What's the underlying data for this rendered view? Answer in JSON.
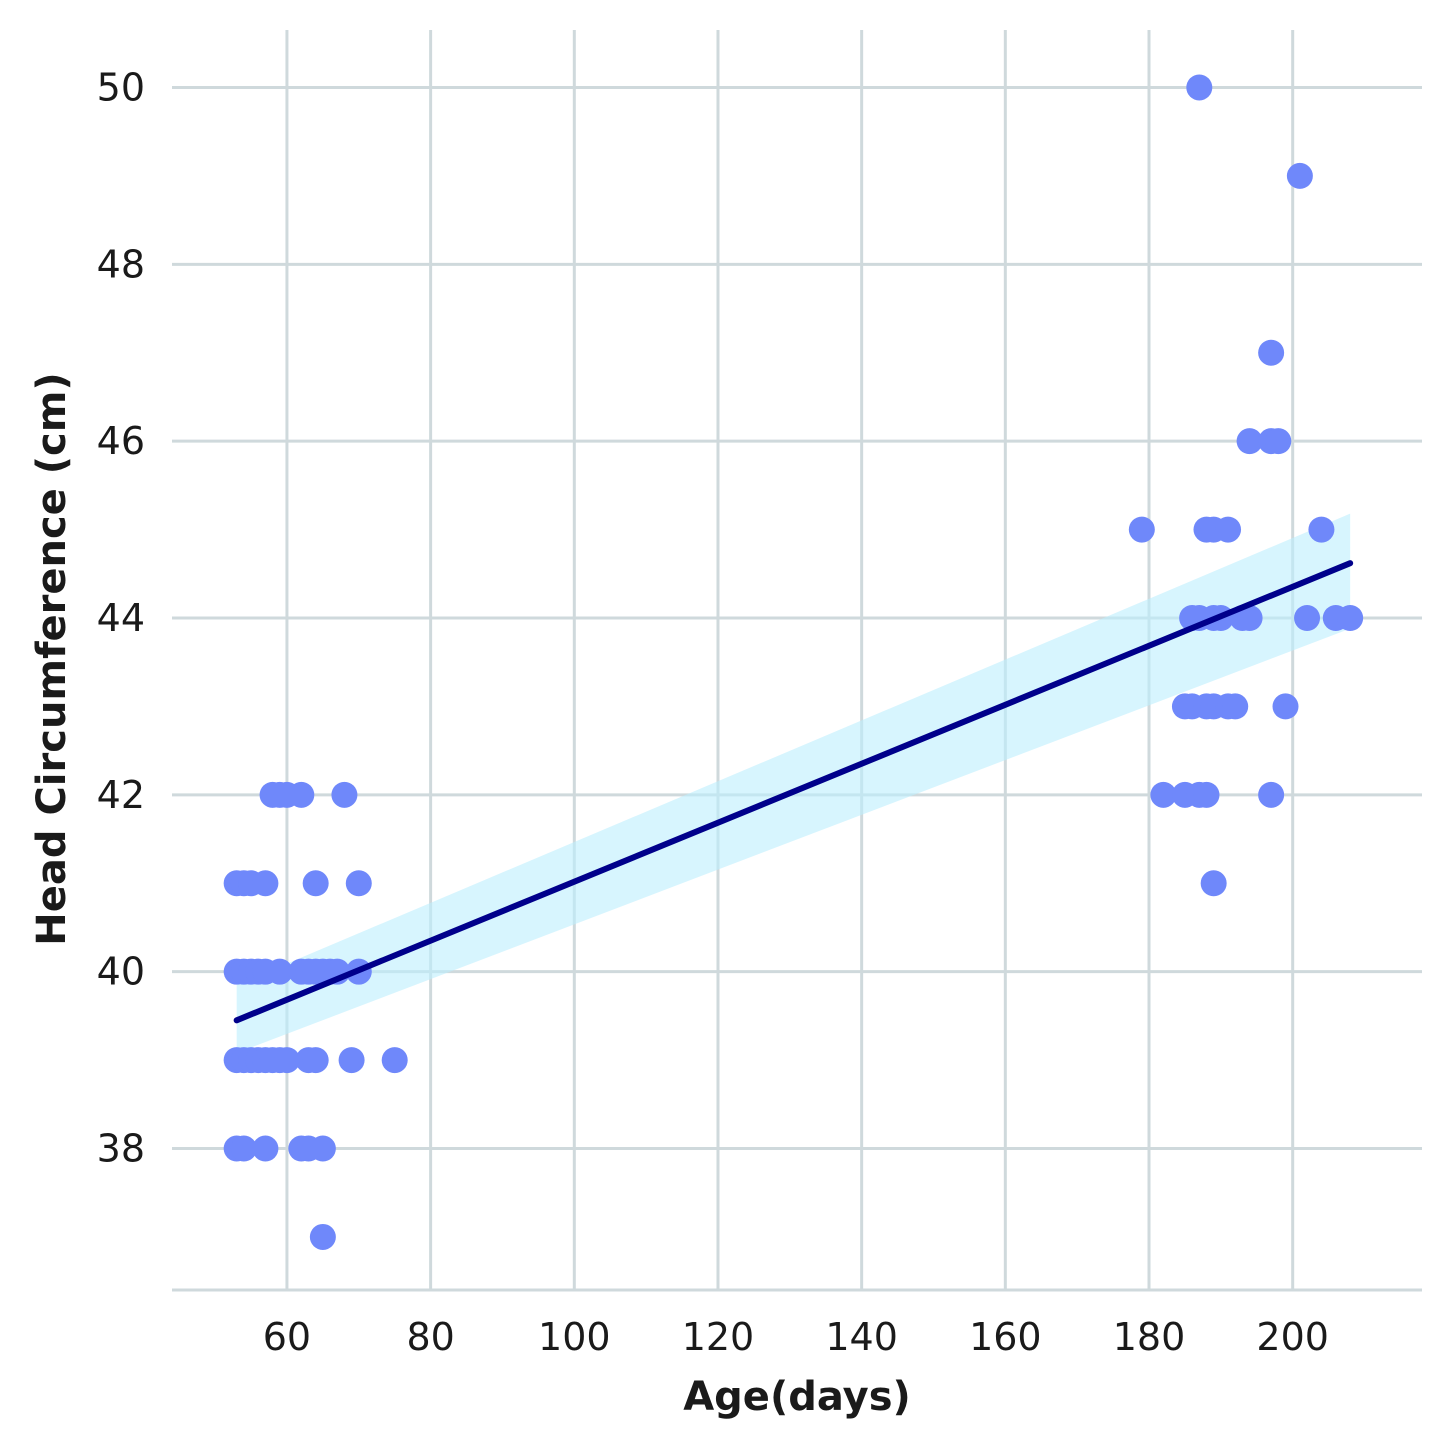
{
  "chart_data": {
    "type": "scatter",
    "title": "",
    "xlabel": "Age(days)",
    "ylabel": "Head Circumference (cm)",
    "xlim": [
      44,
      218
    ],
    "ylim": [
      36.4,
      50.65
    ],
    "xticks": [
      60,
      80,
      100,
      120,
      140,
      160,
      180,
      200
    ],
    "yticks": [
      38,
      40,
      42,
      44,
      46,
      48,
      50
    ],
    "grid": true,
    "legend": "none",
    "colors": {
      "points": "#6f88fa",
      "line": "#00008b",
      "band": "#bdeefd",
      "grid": "#cfd9dc"
    },
    "points": [
      {
        "x": 53,
        "y": 41
      },
      {
        "x": 54,
        "y": 41
      },
      {
        "x": 55,
        "y": 41
      },
      {
        "x": 57,
        "y": 41
      },
      {
        "x": 53,
        "y": 40
      },
      {
        "x": 54,
        "y": 40
      },
      {
        "x": 55,
        "y": 40
      },
      {
        "x": 56,
        "y": 40
      },
      {
        "x": 57,
        "y": 40
      },
      {
        "x": 59,
        "y": 40
      },
      {
        "x": 62,
        "y": 40
      },
      {
        "x": 63,
        "y": 40
      },
      {
        "x": 64,
        "y": 40
      },
      {
        "x": 65,
        "y": 40
      },
      {
        "x": 66,
        "y": 40
      },
      {
        "x": 67,
        "y": 40
      },
      {
        "x": 70,
        "y": 40
      },
      {
        "x": 53,
        "y": 39
      },
      {
        "x": 54,
        "y": 39
      },
      {
        "x": 55,
        "y": 39
      },
      {
        "x": 56,
        "y": 39
      },
      {
        "x": 57,
        "y": 39
      },
      {
        "x": 58,
        "y": 39
      },
      {
        "x": 59,
        "y": 39
      },
      {
        "x": 60,
        "y": 39
      },
      {
        "x": 63,
        "y": 39
      },
      {
        "x": 64,
        "y": 39
      },
      {
        "x": 69,
        "y": 39
      },
      {
        "x": 75,
        "y": 39
      },
      {
        "x": 53,
        "y": 38
      },
      {
        "x": 54,
        "y": 38
      },
      {
        "x": 57,
        "y": 38
      },
      {
        "x": 62,
        "y": 38
      },
      {
        "x": 63,
        "y": 38
      },
      {
        "x": 65,
        "y": 38
      },
      {
        "x": 65,
        "y": 37
      },
      {
        "x": 58,
        "y": 42
      },
      {
        "x": 59,
        "y": 42
      },
      {
        "x": 60,
        "y": 42
      },
      {
        "x": 62,
        "y": 42
      },
      {
        "x": 68,
        "y": 42
      },
      {
        "x": 64,
        "y": 41
      },
      {
        "x": 70,
        "y": 41
      },
      {
        "x": 187,
        "y": 50
      },
      {
        "x": 201,
        "y": 49
      },
      {
        "x": 197,
        "y": 47
      },
      {
        "x": 194,
        "y": 46
      },
      {
        "x": 197,
        "y": 46
      },
      {
        "x": 198,
        "y": 46
      },
      {
        "x": 179,
        "y": 45
      },
      {
        "x": 188,
        "y": 45
      },
      {
        "x": 189,
        "y": 45
      },
      {
        "x": 191,
        "y": 45
      },
      {
        "x": 204,
        "y": 45
      },
      {
        "x": 186,
        "y": 44
      },
      {
        "x": 187,
        "y": 44
      },
      {
        "x": 189,
        "y": 44
      },
      {
        "x": 190,
        "y": 44
      },
      {
        "x": 193,
        "y": 44
      },
      {
        "x": 194,
        "y": 44
      },
      {
        "x": 202,
        "y": 44
      },
      {
        "x": 206,
        "y": 44
      },
      {
        "x": 208,
        "y": 44
      },
      {
        "x": 185,
        "y": 43
      },
      {
        "x": 186,
        "y": 43
      },
      {
        "x": 188,
        "y": 43
      },
      {
        "x": 189,
        "y": 43
      },
      {
        "x": 191,
        "y": 43
      },
      {
        "x": 192,
        "y": 43
      },
      {
        "x": 199,
        "y": 43
      },
      {
        "x": 182,
        "y": 42
      },
      {
        "x": 185,
        "y": 42
      },
      {
        "x": 187,
        "y": 42
      },
      {
        "x": 188,
        "y": 42
      },
      {
        "x": 197,
        "y": 42
      },
      {
        "x": 189,
        "y": 41
      }
    ],
    "regression": {
      "x": [
        53,
        208
      ],
      "y": [
        39.45,
        44.62
      ]
    },
    "confidence_band": {
      "x": [
        53,
        208
      ],
      "upper": [
        39.85,
        45.18
      ],
      "lower": [
        39.08,
        43.88
      ]
    }
  }
}
